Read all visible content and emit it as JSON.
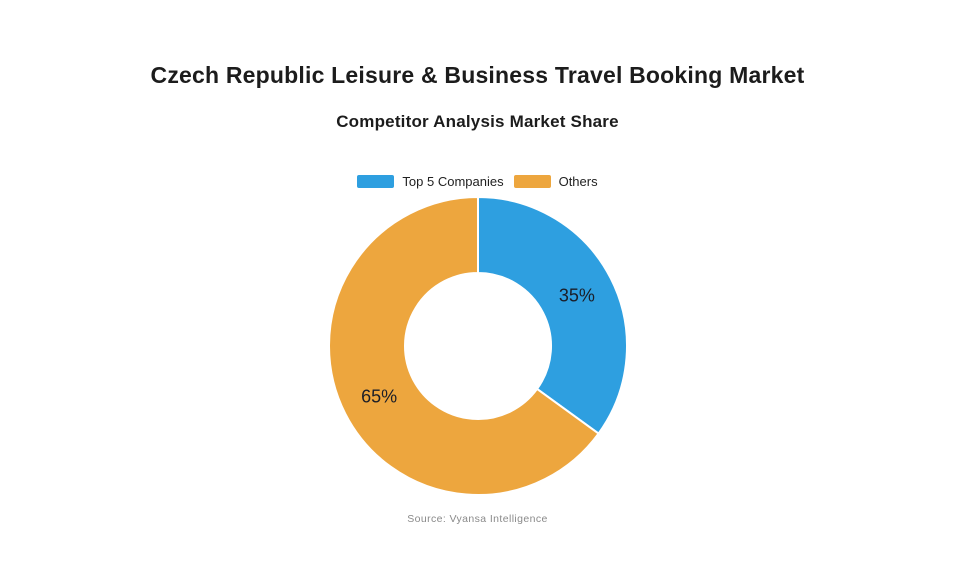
{
  "page": {
    "title": "Czech Republic Leisure & Business Travel Booking Market",
    "subtitle": "Competitor Analysis Market Share",
    "source": "Source: Vyansa Intelligence"
  },
  "chart_data": {
    "type": "pie",
    "subtype": "donut",
    "title": "Czech Republic Leisure & Business Travel Booking Market",
    "subtitle": "Competitor Analysis Market Share",
    "labels": [
      "Top 5 Companies",
      "Others"
    ],
    "values": [
      35,
      65
    ],
    "unit": "%",
    "slice_labels": [
      "35%",
      "65%"
    ],
    "colors": [
      "#2E9FE0",
      "#EDA63E"
    ],
    "label_color": "#1b1e28",
    "separator_color": "#ffffff",
    "legend_position": "top",
    "start_angle_deg": 0,
    "direction": "clockwise",
    "donut_hole_ratio": 0.49,
    "source": "Source: Vyansa Intelligence"
  }
}
